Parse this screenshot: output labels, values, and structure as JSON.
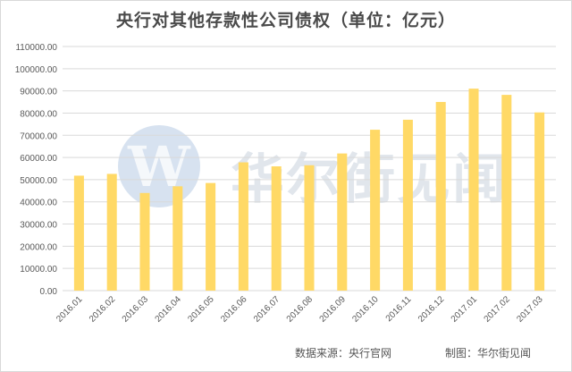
{
  "chart_data": {
    "type": "bar",
    "title": "央行对其他存款性公司债权（单位：亿元）",
    "categories": [
      "2016.01",
      "2016.02",
      "2016.03",
      "2016.04",
      "2016.05",
      "2016.06",
      "2016.07",
      "2016.08",
      "2016.09",
      "2016.10",
      "2016.11",
      "2016.12",
      "2017.01",
      "2017.02",
      "2017.03"
    ],
    "values": [
      51800,
      52600,
      44000,
      47000,
      48500,
      57800,
      56000,
      56500,
      61800,
      72500,
      77000,
      85000,
      91000,
      88200,
      80300
    ],
    "ylim": [
      0,
      110000
    ],
    "yticks": [
      "0.00",
      "10000.00",
      "20000.00",
      "30000.00",
      "40000.00",
      "50000.00",
      "60000.00",
      "70000.00",
      "80000.00",
      "90000.00",
      "100000.00",
      "110000.00"
    ],
    "ytick_values": [
      0,
      10000,
      20000,
      30000,
      40000,
      50000,
      60000,
      70000,
      80000,
      90000,
      100000,
      110000
    ],
    "grid": true,
    "bar_color": "#FFD966",
    "gridline_color": "#d9d9d9",
    "axis_text_color": "#595959"
  },
  "footer": {
    "source": "数据来源：央行官网",
    "credit": "制图：华尔街见闻"
  },
  "watermark": {
    "text": "华尔街见闻",
    "logo_letter": "W"
  }
}
